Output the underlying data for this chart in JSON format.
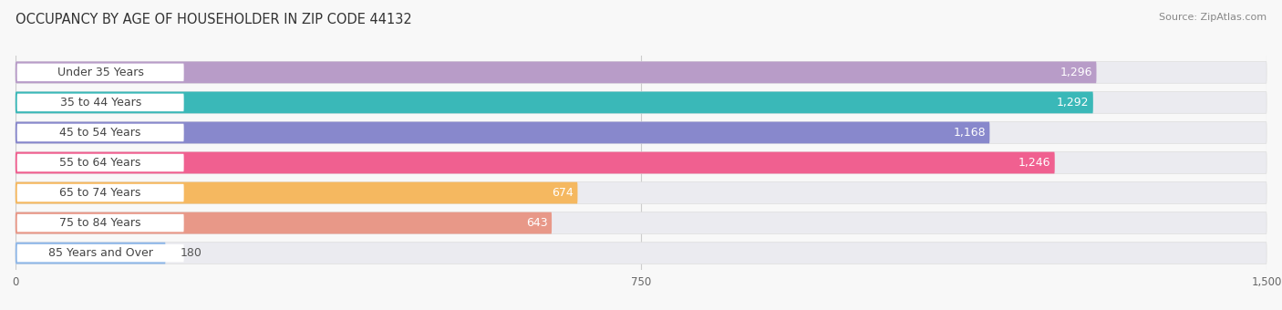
{
  "title": "OCCUPANCY BY AGE OF HOUSEHOLDER IN ZIP CODE 44132",
  "source": "Source: ZipAtlas.com",
  "categories": [
    "Under 35 Years",
    "35 to 44 Years",
    "45 to 54 Years",
    "55 to 64 Years",
    "65 to 74 Years",
    "75 to 84 Years",
    "85 Years and Over"
  ],
  "values": [
    1296,
    1292,
    1168,
    1246,
    674,
    643,
    180
  ],
  "bar_colors": [
    "#b89cc8",
    "#3ab8b8",
    "#8888cc",
    "#f06090",
    "#f5b860",
    "#e89888",
    "#90b8e8"
  ],
  "bar_bg_colors": [
    "#eeeef4",
    "#eeeef4",
    "#eeeef4",
    "#eeeef4",
    "#eeeef4",
    "#eeeef4",
    "#eeeef4"
  ],
  "xlim": [
    0,
    1500
  ],
  "xticks": [
    0,
    750,
    1500
  ],
  "xtick_labels": [
    "0",
    "750",
    "1,500"
  ],
  "title_fontsize": 10.5,
  "source_fontsize": 8,
  "label_fontsize": 9,
  "value_fontsize": 9,
  "background_color": "#f8f8f8"
}
